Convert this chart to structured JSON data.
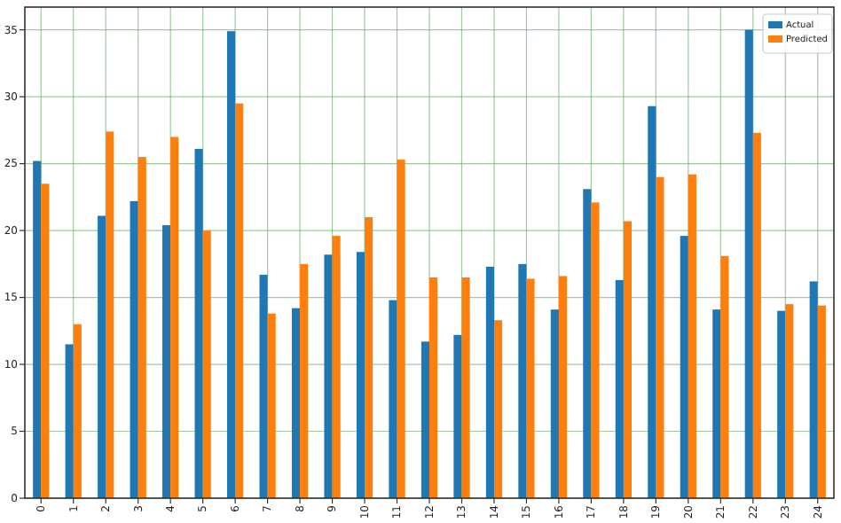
{
  "chart_data": {
    "type": "bar",
    "categories": [
      "0",
      "1",
      "2",
      "3",
      "4",
      "5",
      "6",
      "7",
      "8",
      "9",
      "10",
      "11",
      "12",
      "13",
      "14",
      "15",
      "16",
      "17",
      "18",
      "19",
      "20",
      "21",
      "22",
      "23",
      "24"
    ],
    "series": [
      {
        "name": "Actual",
        "color": "#1f77b4",
        "values": [
          25.2,
          11.5,
          21.1,
          22.2,
          20.4,
          26.1,
          34.9,
          16.7,
          14.2,
          18.2,
          18.4,
          14.8,
          11.7,
          12.2,
          17.3,
          17.5,
          14.1,
          23.1,
          16.3,
          29.3,
          19.6,
          14.1,
          35.0,
          14.0,
          16.2
        ]
      },
      {
        "name": "Predicted",
        "color": "#ff7f0e",
        "values": [
          23.5,
          13.0,
          27.4,
          25.5,
          27.0,
          20.0,
          29.5,
          13.8,
          17.5,
          19.6,
          21.0,
          25.3,
          16.5,
          16.5,
          13.3,
          16.4,
          16.6,
          22.1,
          20.7,
          24.0,
          24.2,
          18.1,
          27.3,
          14.5,
          14.4
        ]
      }
    ],
    "ylim": [
      0,
      36.7
    ],
    "yticks": [
      0,
      5,
      10,
      15,
      20,
      25,
      30,
      35
    ],
    "grid": true,
    "legend": "top right"
  }
}
